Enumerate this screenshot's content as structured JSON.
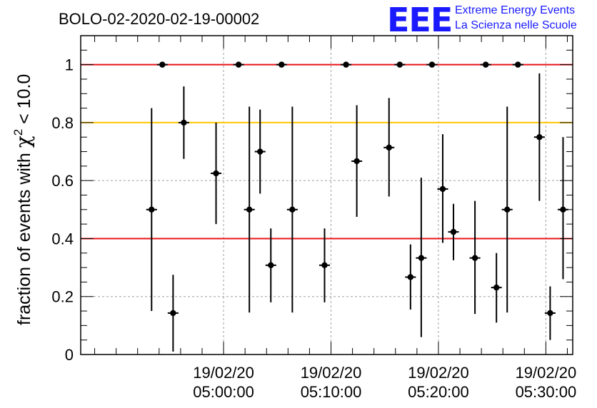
{
  "chart_data": {
    "type": "scatter",
    "title": "BOLO-02-2020-02-19-00002",
    "ylabel_main": "fraction of events with ",
    "ylabel_symbol": "χ",
    "ylabel_exp": "2",
    "ylabel_tail": " < 10.0",
    "ylim": [
      0,
      1.1
    ],
    "yticks": [
      0,
      0.2,
      0.4,
      0.6,
      0.8,
      1
    ],
    "ytick_labels": [
      "0",
      "0.2",
      "0.4",
      "0.6",
      "0.8",
      "1"
    ],
    "xlim_minutes": [
      -13.3,
      32.5
    ],
    "xticks": [
      {
        "minute": 0,
        "date": "19/02/20",
        "time": "05:00:00"
      },
      {
        "minute": 10,
        "date": "19/02/20",
        "time": "05:10:00"
      },
      {
        "minute": 20,
        "date": "19/02/20",
        "time": "05:20:00"
      },
      {
        "minute": 30,
        "date": "19/02/20",
        "time": "05:30:00"
      }
    ],
    "grid": true,
    "reference_lines": [
      {
        "y": 1.0,
        "color": "#e8141a"
      },
      {
        "y": 0.8,
        "color": "#ffc800"
      },
      {
        "y": 0.4,
        "color": "#e8141a"
      }
    ],
    "points": [
      {
        "x": -6.7,
        "y": 0.5,
        "ylo": 0.15,
        "yhi": 0.85
      },
      {
        "x": -5.7,
        "y": 1.0,
        "ylo": 1.0,
        "yhi": 1.0
      },
      {
        "x": -4.7,
        "y": 0.143,
        "ylo": 0.01,
        "yhi": 0.275
      },
      {
        "x": -3.7,
        "y": 0.8,
        "ylo": 0.675,
        "yhi": 0.925
      },
      {
        "x": -0.7,
        "y": 0.625,
        "ylo": 0.45,
        "yhi": 0.8
      },
      {
        "x": 1.4,
        "y": 1.0,
        "ylo": 1.0,
        "yhi": 1.0
      },
      {
        "x": 2.4,
        "y": 0.5,
        "ylo": 0.145,
        "yhi": 0.855
      },
      {
        "x": 3.4,
        "y": 0.7,
        "ylo": 0.555,
        "yhi": 0.845
      },
      {
        "x": 4.4,
        "y": 0.308,
        "ylo": 0.18,
        "yhi": 0.435
      },
      {
        "x": 5.4,
        "y": 1.0,
        "ylo": 1.0,
        "yhi": 1.0
      },
      {
        "x": 6.4,
        "y": 0.5,
        "ylo": 0.145,
        "yhi": 0.855
      },
      {
        "x": 9.4,
        "y": 0.308,
        "ylo": 0.18,
        "yhi": 0.435
      },
      {
        "x": 11.4,
        "y": 1.0,
        "ylo": 1.0,
        "yhi": 1.0
      },
      {
        "x": 12.4,
        "y": 0.667,
        "ylo": 0.475,
        "yhi": 0.86
      },
      {
        "x": 15.4,
        "y": 0.714,
        "ylo": 0.545,
        "yhi": 0.885
      },
      {
        "x": 16.4,
        "y": 1.0,
        "ylo": 1.0,
        "yhi": 1.0
      },
      {
        "x": 17.4,
        "y": 0.267,
        "ylo": 0.155,
        "yhi": 0.38
      },
      {
        "x": 18.4,
        "y": 0.333,
        "ylo": 0.06,
        "yhi": 0.61
      },
      {
        "x": 19.4,
        "y": 1.0,
        "ylo": 1.0,
        "yhi": 1.0
      },
      {
        "x": 20.4,
        "y": 0.571,
        "ylo": 0.385,
        "yhi": 0.76
      },
      {
        "x": 21.4,
        "y": 0.423,
        "ylo": 0.325,
        "yhi": 0.52
      },
      {
        "x": 23.4,
        "y": 0.333,
        "ylo": 0.14,
        "yhi": 0.53
      },
      {
        "x": 24.4,
        "y": 1.0,
        "ylo": 1.0,
        "yhi": 1.0
      },
      {
        "x": 25.4,
        "y": 0.231,
        "ylo": 0.11,
        "yhi": 0.35
      },
      {
        "x": 26.4,
        "y": 0.5,
        "ylo": 0.145,
        "yhi": 0.855
      },
      {
        "x": 27.4,
        "y": 1.0,
        "ylo": 1.0,
        "yhi": 1.0
      },
      {
        "x": 29.4,
        "y": 0.75,
        "ylo": 0.53,
        "yhi": 0.97
      },
      {
        "x": 30.4,
        "y": 0.143,
        "ylo": 0.05,
        "yhi": 0.235
      },
      {
        "x": 31.6,
        "y": 0.5,
        "ylo": 0.26,
        "yhi": 0.75
      }
    ]
  },
  "logo": {
    "mark": "EEE",
    "line1": "Extreme Energy Events",
    "line2": "La Scienza nelle Scuole",
    "color": "#1a1aff"
  }
}
